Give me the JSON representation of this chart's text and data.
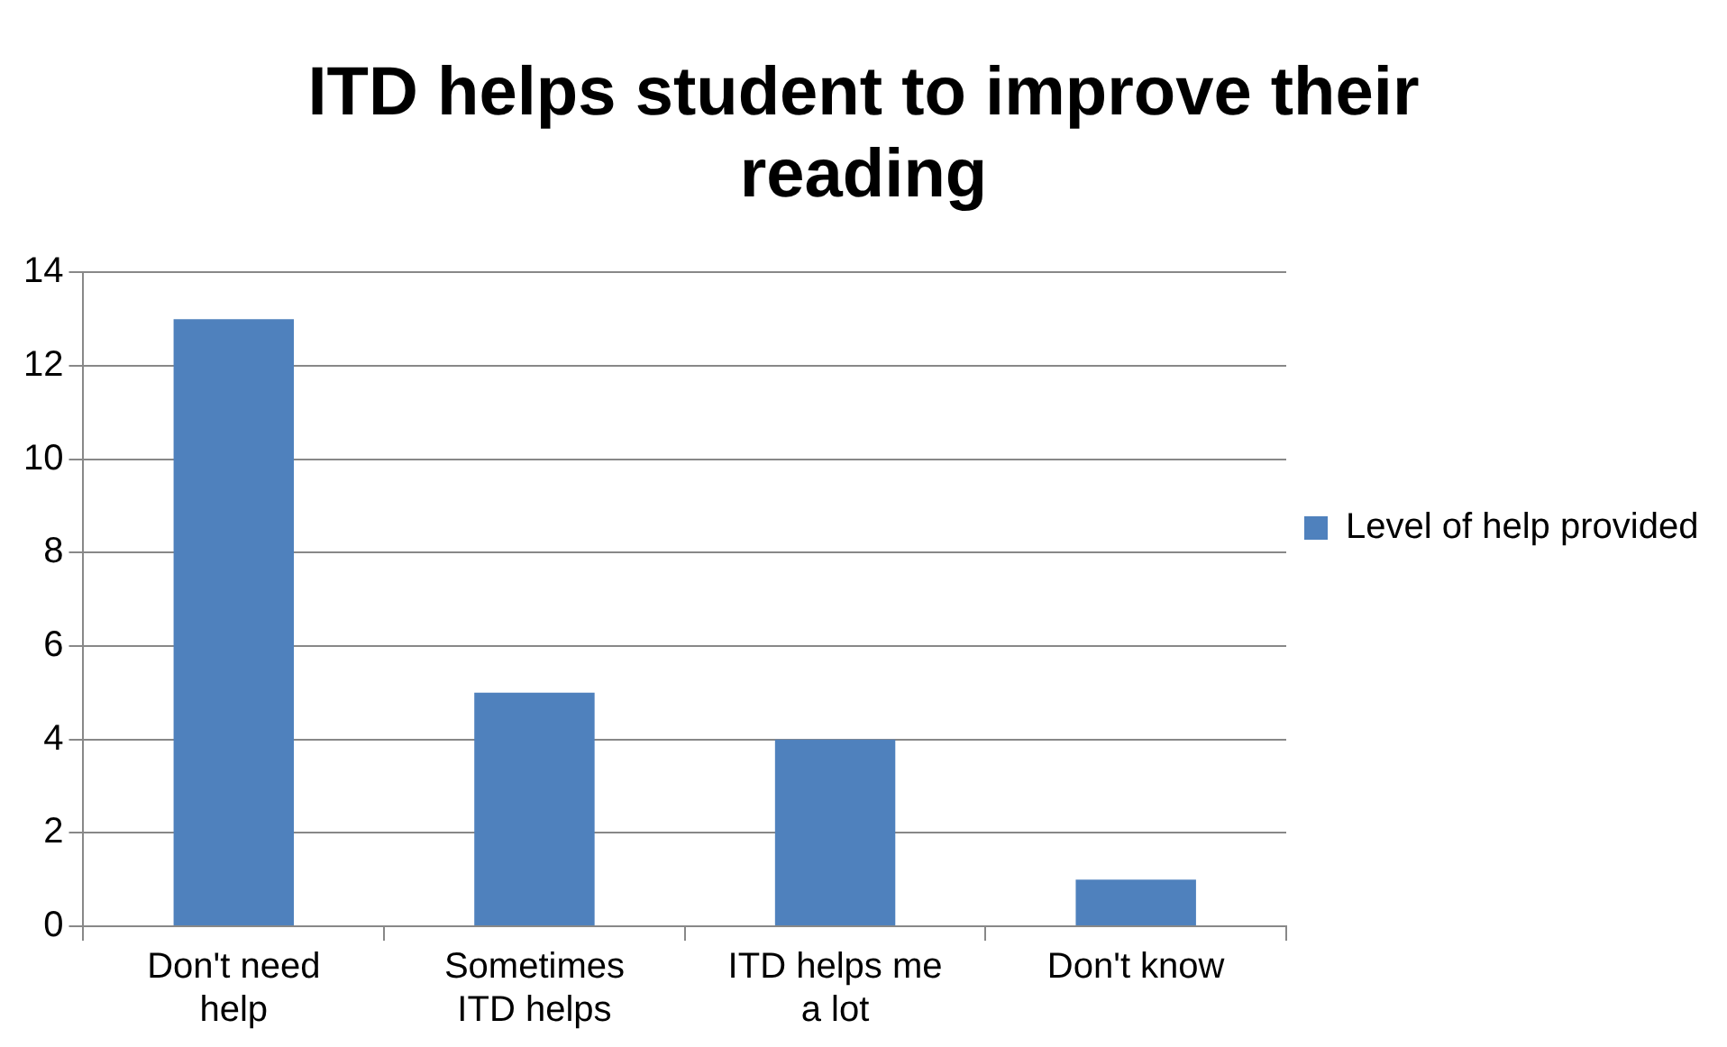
{
  "chart_data": {
    "type": "bar",
    "title": "ITD helps student to improve their reading",
    "categories": [
      "Don't need help",
      "Sometimes ITD helps",
      "ITD helps me a lot",
      "Don't know"
    ],
    "series": [
      {
        "name": "Level of help provided",
        "color": "#4f81bd",
        "values": [
          13,
          5,
          4,
          1
        ]
      }
    ],
    "ylim": [
      0,
      14
    ],
    "yticks": [
      0,
      2,
      4,
      6,
      8,
      10,
      12,
      14
    ],
    "grid": "y",
    "legend": "right"
  }
}
